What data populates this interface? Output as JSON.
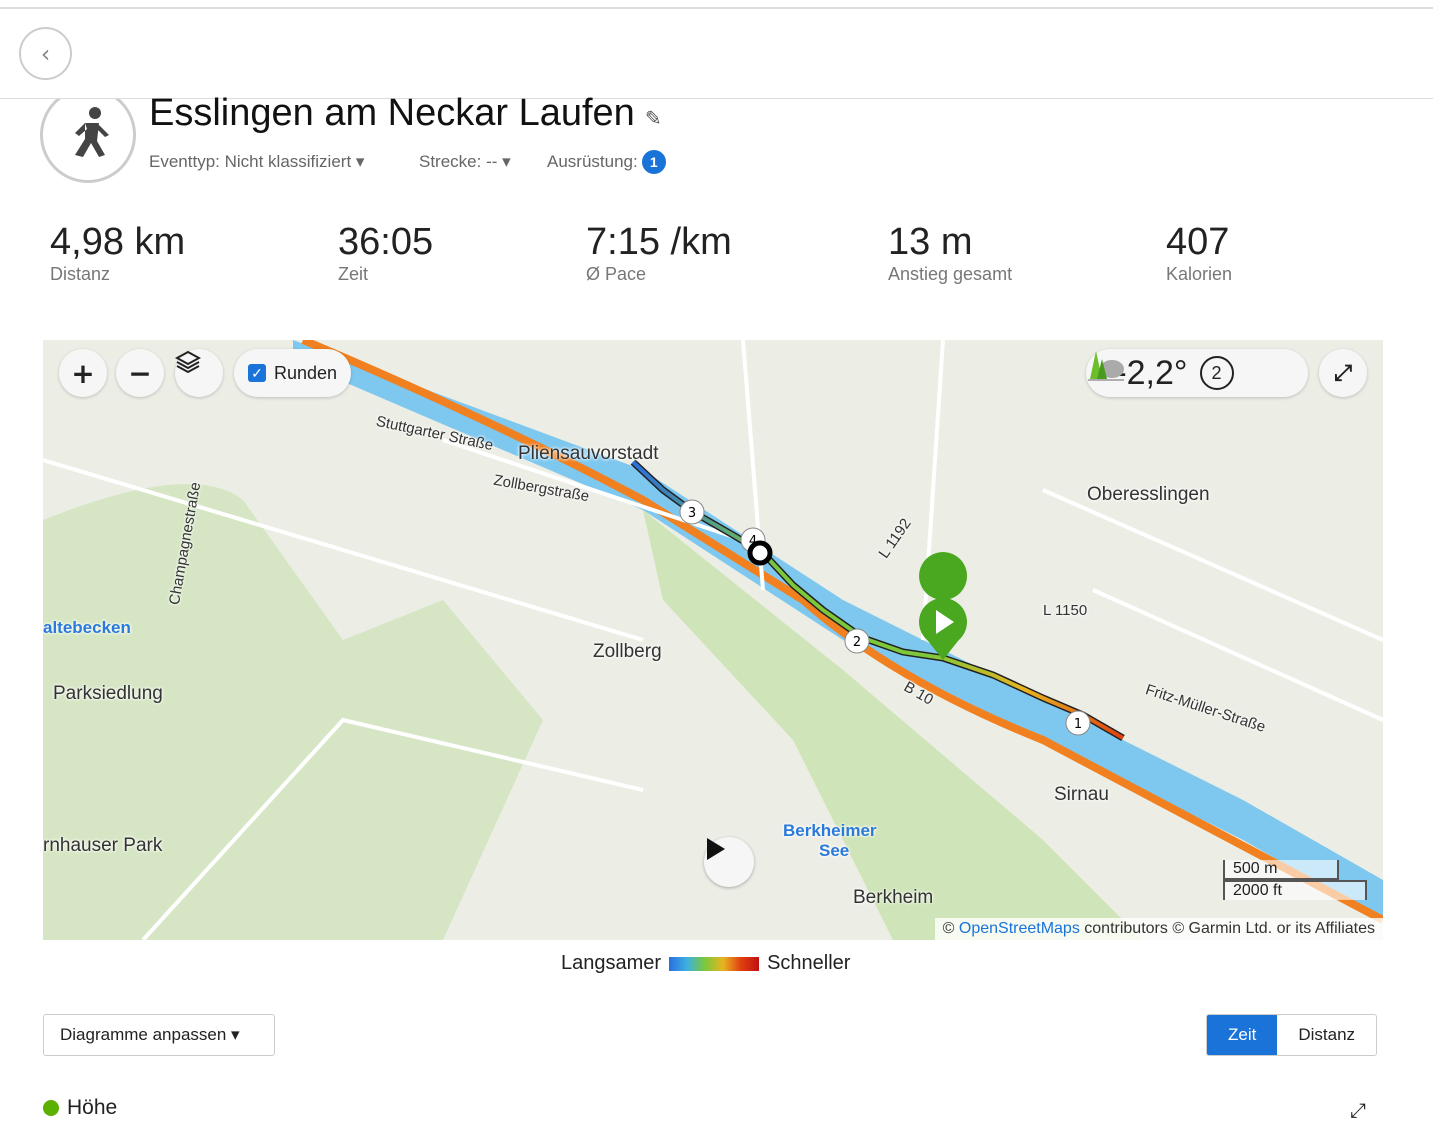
{
  "header": {
    "title": "Esslingen am Neckar Laufen",
    "eventtype": "Eventtyp: Nicht klassifiziert",
    "strecke": "Strecke: --",
    "ausruestung": "Ausrüstung:",
    "ausruestung_count": "1"
  },
  "stats": [
    {
      "value": "4,98 km",
      "label": "Distanz"
    },
    {
      "value": "36:05",
      "label": "Zeit"
    },
    {
      "value": "7:15 /km",
      "label": "Ø Pace"
    },
    {
      "value": "13 m",
      "label": "Anstieg gesamt"
    },
    {
      "value": "407",
      "label": "Kalorien"
    }
  ],
  "map": {
    "runden_label": "Runden",
    "runden_checked": true,
    "temperature": "-2,2°",
    "weather_icon": "trees-cloud-icon",
    "lap_count": "2",
    "labels": [
      "Pliensauvorstadt",
      "Oberesslingen",
      "Zollberg",
      "Parksiedlung",
      "Sirnau",
      "Berkheim",
      "Berkheimer",
      "See",
      "rnhauser Park",
      "altebecken",
      "Stuttgarter Straße",
      "Zollbergstraße",
      "Champagnestraße",
      "Fritz-Müller-Straße",
      "L 1150",
      "L 1192",
      "B 10"
    ],
    "lap_markers": [
      "1",
      "2",
      "3",
      "4"
    ],
    "scale_metric": "500 m",
    "scale_imperial": "2000 ft",
    "attribution_prefix": "©",
    "attribution_link": "OpenStreetMaps",
    "attribution_suffix": "contributors © Garmin Ltd. or its Affiliates"
  },
  "legend": {
    "slower": "Langsamer",
    "faster": "Schneller"
  },
  "controls": {
    "customize": "Diagramme anpassen",
    "time": "Zeit",
    "distance": "Distanz"
  },
  "chart": {
    "title": "Höhe",
    "color": "#5cb000"
  }
}
